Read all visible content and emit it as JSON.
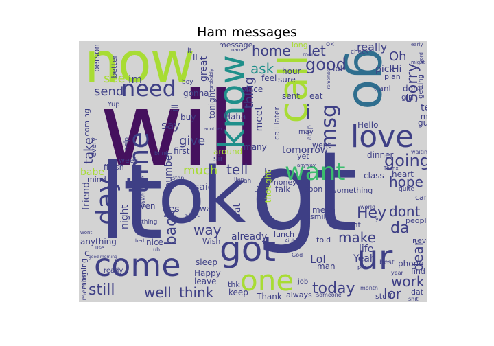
{
  "title": "Ham messages",
  "colors": {
    "background": "#d3d3d3",
    "dark_purple": "#45115e",
    "indigo": "#3e3f85",
    "blue": "#2f6e8e",
    "teal": "#1f8f8a",
    "green": "#3bbd6e",
    "lime": "#a8dc34"
  },
  "words": {
    "will": "will",
    "lt": "lt",
    "gt": "gt",
    "ok": "ok",
    "now": "now",
    "go": "go",
    "call": "call",
    "know": "know",
    "love": "love",
    "got": "got",
    "come": "come",
    "time": "time",
    "day": "day",
    "want": "want",
    "ur": "ur",
    "one": "one",
    "need": "need",
    "home": "home",
    "let": "let",
    "good": "good",
    "really": "really",
    "oh": "Oh",
    "sorry": "Sorry",
    "see": "see",
    "send": "send",
    "im": "im",
    "ask": "ask",
    "thing": "thing",
    "i": "i",
    "msg": "msg",
    "say": "say",
    "give": "give",
    "take": "take",
    "much": "much",
    "tell": "tell",
    "going": "going",
    "hope": "hope",
    "back": "back",
    "hey": "Hey",
    "dont": "dont",
    "da": "da",
    "make": "make",
    "dear": "dear",
    "way": "way",
    "still": "still",
    "well": "well",
    "think": "think",
    "today": "today",
    "work": "work",
    "lor": "lor",
    "lol": "Lol",
    "yeah": "Yeah",
    "yes": "Yes",
    "night": "night",
    "friend": "friend",
    "babe": "babe",
    "already": "already",
    "life": "life",
    "pick": "pick",
    "cant": "cant",
    "done": "done",
    "text": "text",
    "guy": "guy",
    "try": "try",
    "hello": "Hello",
    "dinner": "dinner",
    "class": "class",
    "heart": "heart",
    "later": "later",
    "tomorrow": "tomorrow",
    "said": "said",
    "number": "number",
    "place": "place",
    "sent": "sent",
    "eat": "eat",
    "please": "please",
    "lot": "lot",
    "hi": "Hi",
    "meet": "meet",
    "great": "great",
    "tonight": "tonight",
    "many": "many",
    "sir": "sir",
    "first": "first",
    "ill": "ill",
    "buy": "buy",
    "gonna": "gonna",
    "haha": "Haha",
    "around": "around",
    "message": "message",
    "feel": "feel",
    "hour": "hour",
    "sure": "sure",
    "phone": "phone",
    "happy": "Happy",
    "leave": "leave",
    "sleep": "sleep",
    "keep": "keep",
    "thank": "Thank",
    "always": "always",
    "man": "man",
    "wait": "wait",
    "nice": "nice",
    "even": "even",
    "finish": "finish",
    "week": "week",
    "anything": "anything",
    "morning": "morning",
    "ready": "ready",
    "wat": "wat",
    "reply": "reply",
    "thought": "thought",
    "money": "money",
    "talk": "talk",
    "soon": "soon",
    "something": "something",
    "smile": "smile",
    "told": "told",
    "mean": "mean",
    "right": "right",
    "people": "people",
    "never": "never",
    "car": "car",
    "find": "find",
    "stuff": "stuff",
    "dat": "dat",
    "lunch": "lunch",
    "wish": "Wish",
    "thk": "thk",
    "went": "went",
    "yet": "yet",
    "call_later": "call later",
    "miss": "miss",
    "girl": "girl",
    "plan": "plan",
    "getting": "getting",
    "check": "check",
    "long": "long",
    "room": "room",
    "person": "person",
    "better": "better",
    "coming": "coming",
    "every": "every",
    "mind": "mind",
    "take_care": "take care",
    "start": "start",
    "nothing": "nothing",
    "best": "best",
    "job": "job",
    "god": "God",
    "liao": "liao",
    "amp": "amp",
    "may": "may",
    "quite": "quite",
    "boy": "boy",
    "waiting": "waiting",
    "stop": "stop",
    "ah": "ah",
    "year": "year",
    "world": "world",
    "month": "month",
    "someone": "someone",
    "bring": "bring",
    "help": "help",
    "name": "name",
    "another": "another",
    "probably": "probably",
    "anyway": "anyway",
    "aight": "Aight",
    "early": "early",
    "might": "might",
    "word": "word",
    "thanx": "Thanx",
    "shit": "shit",
    "good_morning": "good morning",
    "bed": "bed",
    "use": "use",
    "wont": "wont",
    "meeting": "meeting",
    "yup": "Yup",
    "remember": "remember",
    "ll": "ll",
    "lt2": "lt",
    "ok2": "ok",
    "c": "c",
    "uh": "uh",
    "ya": "ya",
    "ii": "ii",
    "pm": "pm"
  }
}
